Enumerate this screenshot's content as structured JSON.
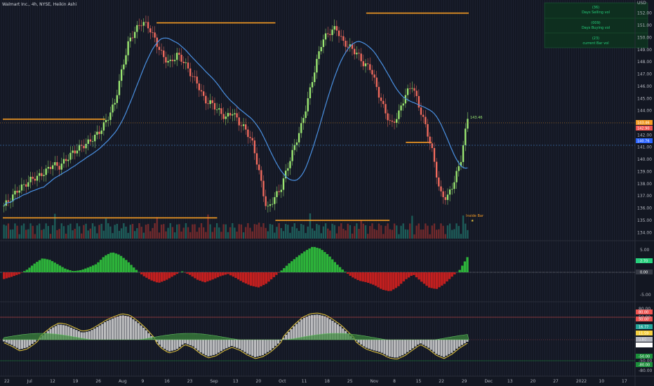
{
  "header": {
    "title": "Walmart Inc., 4h, NYSE, Heikin Ashi"
  },
  "stats_panel": {
    "items": [
      {
        "value": "(36)",
        "label": "Days Selling vol"
      },
      {
        "value": "(009)",
        "label": "Days Buying vol"
      },
      {
        "value": "(23)",
        "label": "current Bar vol"
      }
    ]
  },
  "price_axis": {
    "currency": "USD",
    "ticks": [
      "152.00",
      "151.00",
      "150.00",
      "149.00",
      "148.00",
      "147.00",
      "146.00",
      "145.00",
      "144.00",
      "143.00",
      "142.00",
      "141.00",
      "140.00",
      "139.00",
      "138.00",
      "137.00",
      "136.00",
      "135.00",
      "134.00"
    ],
    "tags": [
      {
        "text": "143.46",
        "color": "#f59b23"
      },
      {
        "text": "142.90",
        "color": "#ef5350"
      },
      {
        "text": "140.76",
        "color": "#2962ff"
      }
    ]
  },
  "osc1_axis": {
    "ticks": [
      "5.00",
      "0.00",
      "-5.00"
    ],
    "tags": [
      {
        "text": "2.70",
        "color": "#26d07c"
      },
      {
        "text": "0.00",
        "color": "#363a45"
      }
    ]
  },
  "osc2_axis": {
    "ticks": [
      "80.00",
      "50.00",
      "0.00",
      "-50.00",
      "-80.00"
    ],
    "tags": [
      {
        "text": "80.00",
        "color": "#ef5350"
      },
      {
        "text": "50.00",
        "color": "#ef5350"
      },
      {
        "text": "16.77",
        "color": "#26a69a"
      },
      {
        "text": "11.59",
        "color": "#f5d040"
      },
      {
        "text": "0.00",
        "color": "#b2b5be"
      },
      {
        "text": "-7.77",
        "color": "#ffffff"
      },
      {
        "text": "-50.00",
        "color": "#1b8f3a"
      },
      {
        "text": "-80.00",
        "color": "#1b8f3a"
      }
    ]
  },
  "time_axis": [
    "22",
    "Jul",
    "12",
    "19",
    "26",
    "Aug",
    "9",
    "16",
    "23",
    "Sep",
    "13",
    "20",
    "Oct",
    "11",
    "18",
    "25",
    "Nov",
    "8",
    "15",
    "22",
    "29",
    "Dec",
    "13",
    "20",
    "27",
    "2022",
    "10",
    "17"
  ],
  "annotations": {
    "inside_bar": "Inside Bar",
    "last_price_label": "143.46"
  },
  "colors": {
    "background": "#131722",
    "bull": "#9be870",
    "bear": "#f26b5e",
    "ma": "#4a90e2",
    "level": "#f59b23",
    "panel_bg": "#0e2f1f"
  },
  "chart_data": [
    {
      "type": "candlestick",
      "name": "price",
      "x_range": [
        "Jun 22",
        "Dec 13"
      ],
      "ylim": [
        133.5,
        152.5
      ],
      "close": [
        136.2,
        136.8,
        137.5,
        137.9,
        138.4,
        138.6,
        139.0,
        139.6,
        139.4,
        140.0,
        140.6,
        141.0,
        141.3,
        141.8,
        142.4,
        143.4,
        144.6,
        147.2,
        149.6,
        150.6,
        151.3,
        150.8,
        149.6,
        148.4,
        147.9,
        148.6,
        148.0,
        147.0,
        146.2,
        144.8,
        144.6,
        144.0,
        143.4,
        143.9,
        143.0,
        142.4,
        141.2,
        138.6,
        135.8,
        136.8,
        137.6,
        139.4,
        141.1,
        142.8,
        145.1,
        147.6,
        149.8,
        150.4,
        150.8,
        149.6,
        149.2,
        148.7,
        147.8,
        147.5,
        145.6,
        144.0,
        142.8,
        143.7,
        145.3,
        146.1,
        144.3,
        142.6,
        140.4,
        137.2,
        136.8,
        138.1,
        139.9,
        143.4
      ],
      "levels": [
        {
          "y": 143.3,
          "x0": "Jun 22",
          "x1": "Jul 30"
        },
        {
          "y": 135.2,
          "x0": "Jun 22",
          "x1": "Sep 15"
        },
        {
          "y": 151.2,
          "x0": "Aug 18",
          "x1": "Oct 5"
        },
        {
          "y": 152.0,
          "x0": "Nov 8",
          "x1": "Dec 13"
        },
        {
          "y": 135.0,
          "x0": "Oct 5",
          "x1": "Nov 15"
        },
        {
          "y": 141.4,
          "x0": "Nov 20",
          "x1": "Dec 1"
        }
      ]
    },
    {
      "type": "bar",
      "name": "histogram",
      "ylim": [
        -5,
        5
      ],
      "values": [
        -1.2,
        -0.8,
        -0.3,
        0.5,
        1.6,
        2.5,
        2.2,
        1.4,
        0.6,
        0.2,
        0.4,
        0.9,
        1.5,
        2.9,
        3.6,
        3.1,
        2.0,
        0.6,
        -0.6,
        -1.4,
        -1.9,
        -1.4,
        -0.6,
        0.2,
        -0.4,
        -1.3,
        -1.8,
        -1.3,
        -0.7,
        -0.3,
        -1.0,
        -1.8,
        -2.4,
        -2.7,
        -2.0,
        -0.8,
        0.4,
        1.7,
        2.8,
        3.8,
        4.6,
        4.2,
        3.1,
        1.6,
        0.3,
        -0.8,
        -1.5,
        -1.8,
        -2.3,
        -3.1,
        -3.4,
        -2.6,
        -1.3,
        -0.4,
        -1.6,
        -2.7,
        -3.0,
        -2.1,
        -0.8,
        0.4,
        2.7
      ]
    },
    {
      "type": "area",
      "name": "oscillator",
      "ylim": [
        -100,
        100
      ],
      "values": [
        -5,
        -15,
        -28,
        -22,
        -6,
        14,
        32,
        44,
        40,
        30,
        20,
        25,
        38,
        52,
        62,
        70,
        66,
        50,
        30,
        5,
        -20,
        -34,
        -28,
        -10,
        -18,
        -36,
        -48,
        -42,
        -28,
        -18,
        -26,
        -40,
        -50,
        -44,
        -30,
        -10,
        16,
        40,
        60,
        70,
        72,
        66,
        52,
        36,
        14,
        -6,
        -22,
        -30,
        -36,
        -48,
        -52,
        -42,
        -26,
        -10,
        -22,
        -40,
        -50,
        -38,
        -20,
        -6
      ]
    }
  ]
}
